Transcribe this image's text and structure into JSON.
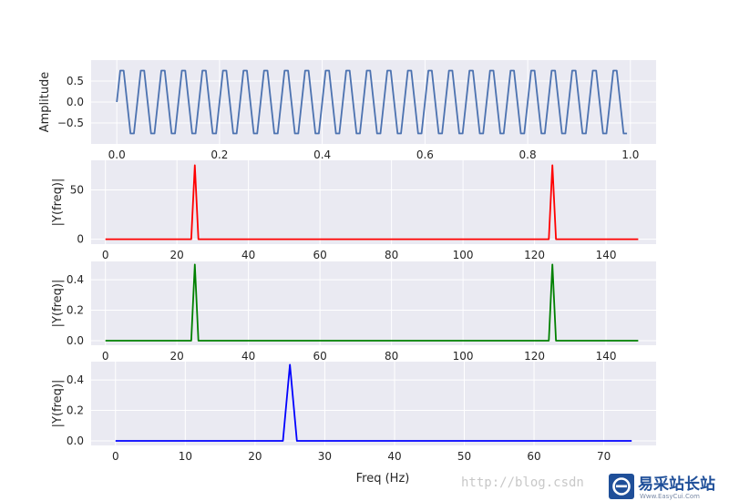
{
  "colors": {
    "panel_bg": "#EAEAF2",
    "grid": "#FFFFFF",
    "text": "#262626",
    "series": [
      "#4C72B0",
      "#FF0000",
      "#008000",
      "#0000FF"
    ]
  },
  "watermark": {
    "url_text": "http://blog.csdn",
    "brand_text": "易采站长站",
    "brand_sub": "Www.EasyCui.Com",
    "logo_icon": "e-logo-icon"
  },
  "chart_data": [
    {
      "type": "line",
      "title": "",
      "xlabel": "",
      "ylabel": "Amplitude",
      "xlim": [
        -0.05,
        1.05
      ],
      "ylim": [
        -1.0,
        1.0
      ],
      "xticks": [
        0.0,
        0.2,
        0.4,
        0.6,
        0.8,
        1.0
      ],
      "xtick_labels": [
        "0.0",
        "0.2",
        "0.4",
        "0.6",
        "0.8",
        "1.0"
      ],
      "yticks": [
        -0.5,
        0.0,
        0.5
      ],
      "ytick_labels": [
        "−0.5",
        "0.0",
        "0.5"
      ],
      "grid": true,
      "series": [
        {
          "signal": "sine",
          "frequency_hz": 25,
          "amplitude": 0.866,
          "sample_rate_hz": 150,
          "x_range": [
            0,
            1
          ],
          "color": "#4C72B0"
        }
      ]
    },
    {
      "type": "line",
      "title": "",
      "xlabel": "",
      "ylabel": "|Y(freq)|",
      "xlim": [
        -4,
        154
      ],
      "ylim": [
        -5,
        80
      ],
      "xticks": [
        0,
        20,
        40,
        60,
        80,
        100,
        120,
        140
      ],
      "xtick_labels": [
        "0",
        "20",
        "40",
        "60",
        "80",
        "100",
        "120",
        "140"
      ],
      "yticks": [
        0,
        50
      ],
      "ytick_labels": [
        "0",
        "50"
      ],
      "grid": true,
      "series": [
        {
          "x_range": [
            0,
            149
          ],
          "baseline": 0,
          "peaks": [
            {
              "x": 25,
              "y": 75
            },
            {
              "x": 125,
              "y": 75
            }
          ],
          "color": "#FF0000"
        }
      ]
    },
    {
      "type": "line",
      "title": "",
      "xlabel": "",
      "ylabel": "|Y(freq)|",
      "xlim": [
        -4,
        154
      ],
      "ylim": [
        -0.03,
        0.52
      ],
      "xticks": [
        0,
        20,
        40,
        60,
        80,
        100,
        120,
        140
      ],
      "xtick_labels": [
        "0",
        "20",
        "40",
        "60",
        "80",
        "100",
        "120",
        "140"
      ],
      "yticks": [
        0.0,
        0.2,
        0.4
      ],
      "ytick_labels": [
        "0.0",
        "0.2",
        "0.4"
      ],
      "grid": true,
      "series": [
        {
          "x_range": [
            0,
            149
          ],
          "baseline": 0,
          "peaks": [
            {
              "x": 25,
              "y": 0.5
            },
            {
              "x": 125,
              "y": 0.5
            }
          ],
          "color": "#008000"
        }
      ]
    },
    {
      "type": "line",
      "title": "",
      "xlabel": "Freq (Hz)",
      "ylabel": "|Y(freq)|",
      "xlim": [
        -3.5,
        77.5
      ],
      "ylim": [
        -0.03,
        0.52
      ],
      "xticks": [
        0,
        10,
        20,
        30,
        40,
        50,
        60,
        70
      ],
      "xtick_labels": [
        "0",
        "10",
        "20",
        "30",
        "40",
        "50",
        "60",
        "70"
      ],
      "yticks": [
        0.0,
        0.2,
        0.4
      ],
      "ytick_labels": [
        "0.0",
        "0.2",
        "0.4"
      ],
      "grid": true,
      "series": [
        {
          "x_range": [
            0,
            74
          ],
          "baseline": 0,
          "peaks": [
            {
              "x": 25,
              "y": 0.5
            }
          ],
          "color": "#0000FF"
        }
      ]
    }
  ]
}
